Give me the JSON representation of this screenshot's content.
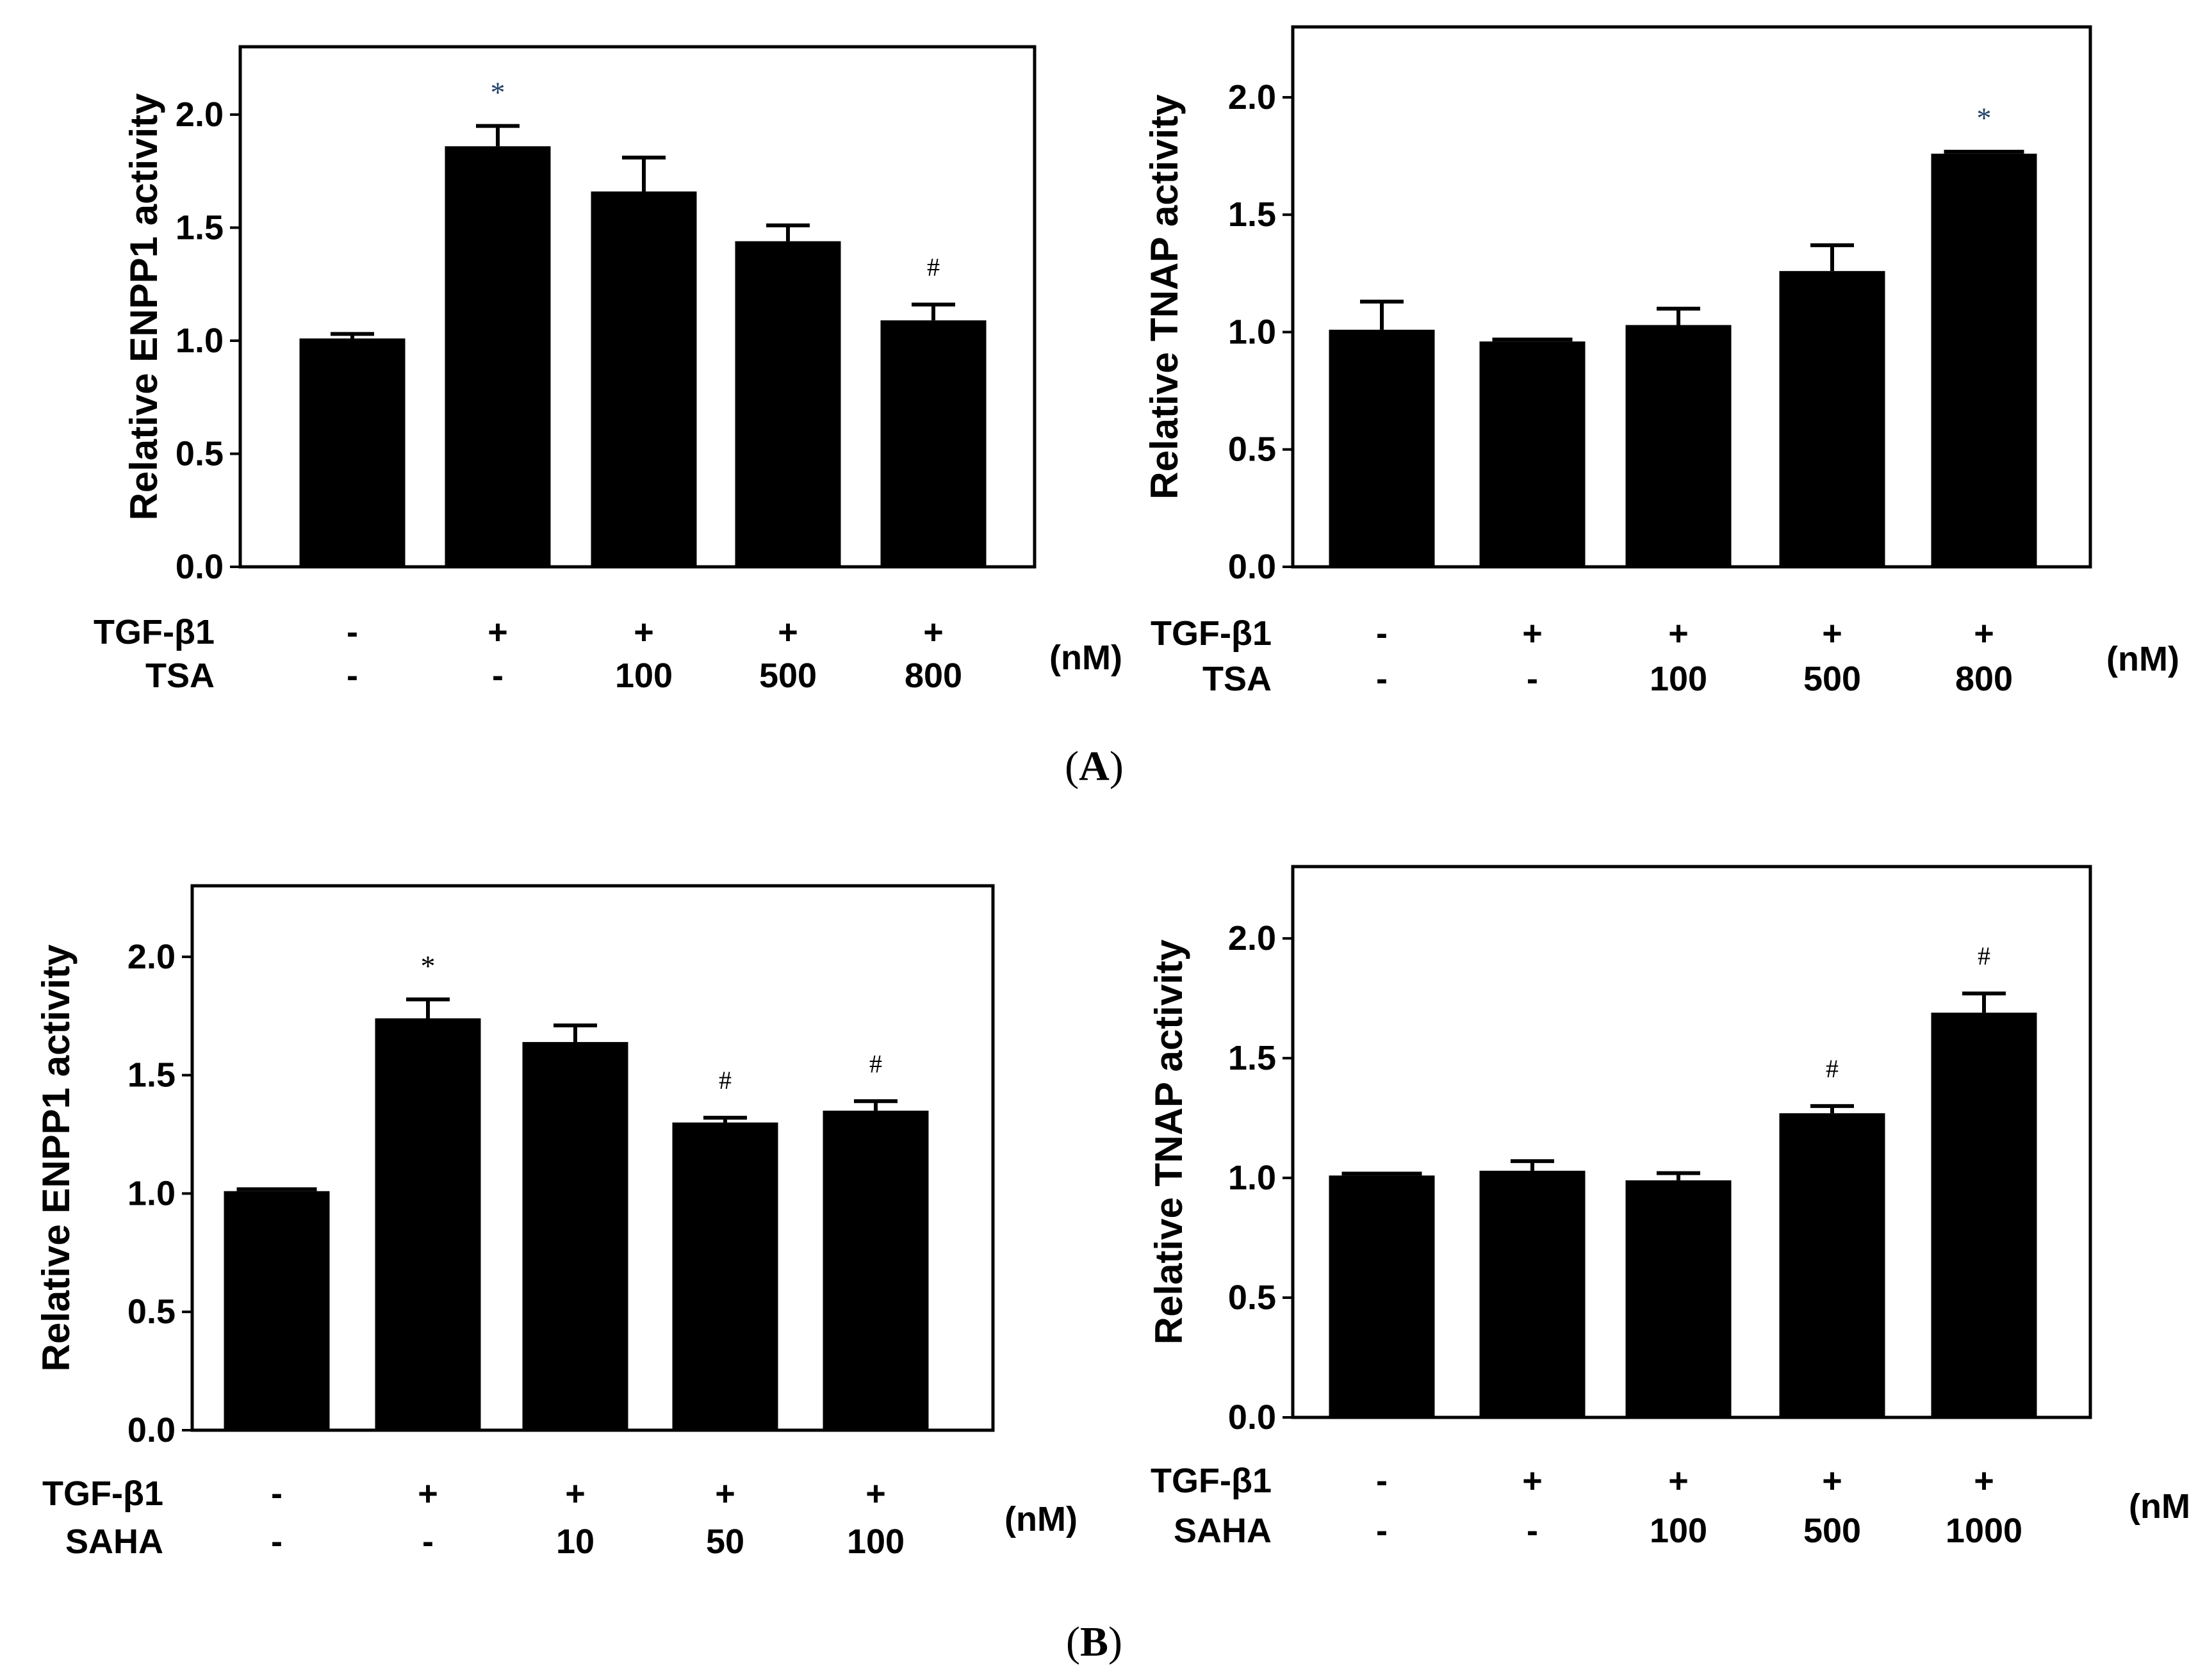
{
  "chart_data": [
    {
      "id": "A-left",
      "type": "bar",
      "ylabel": "Relative ENPP1 activity",
      "ylim": [
        0,
        2.3
      ],
      "yticks": [
        "0.0",
        "0.5",
        "1.0",
        "1.5",
        "2.0"
      ],
      "values": [
        1.01,
        1.86,
        1.66,
        1.44,
        1.09
      ],
      "errors": [
        0.02,
        0.09,
        0.15,
        0.07,
        0.07
      ],
      "annotations": [
        "",
        "*",
        "",
        "",
        "#"
      ],
      "row1_label": "TGF-β1",
      "row1": [
        "-",
        "+",
        "+",
        "+",
        "+"
      ],
      "row2_label": "TSA",
      "row2": [
        "-",
        "-",
        "100",
        "500",
        "800"
      ],
      "unit": "(nM)"
    },
    {
      "id": "A-right",
      "type": "bar",
      "ylabel": "Relative TNAP activity",
      "ylim": [
        0,
        2.3
      ],
      "yticks": [
        "0.0",
        "0.5",
        "1.0",
        "1.5",
        "2.0"
      ],
      "values": [
        1.01,
        0.96,
        1.03,
        1.26,
        1.76
      ],
      "errors": [
        0.12,
        0.01,
        0.07,
        0.11,
        0.01
      ],
      "annotations": [
        "",
        "",
        "",
        "",
        "*"
      ],
      "row1_label": "TGF-β1",
      "row1": [
        "-",
        "+",
        "+",
        "+",
        "+"
      ],
      "row2_label": "TSA",
      "row2": [
        "-",
        "-",
        "100",
        "500",
        "800"
      ],
      "unit": "(nM)"
    },
    {
      "id": "B-left",
      "type": "bar",
      "ylabel": "Relative ENPP1 activity",
      "ylim": [
        0,
        2.3
      ],
      "yticks": [
        "0.0",
        "0.5",
        "1.0",
        "1.5",
        "2.0"
      ],
      "values": [
        1.01,
        1.74,
        1.64,
        1.3,
        1.35
      ],
      "errors": [
        0.01,
        0.08,
        0.07,
        0.02,
        0.04
      ],
      "annotations": [
        "",
        "*",
        "",
        "#",
        "#"
      ],
      "row1_label": "TGF-β1",
      "row1": [
        "-",
        "+",
        "+",
        "+",
        "+"
      ],
      "row2_label": "SAHA",
      "row2": [
        "-",
        "-",
        "10",
        "50",
        "100"
      ],
      "unit": "(nM)"
    },
    {
      "id": "B-right",
      "type": "bar",
      "ylabel": "Relative TNAP activity",
      "ylim": [
        0,
        2.3
      ],
      "yticks": [
        "0.0",
        "0.5",
        "1.0",
        "1.5",
        "2.0"
      ],
      "values": [
        1.01,
        1.03,
        0.99,
        1.27,
        1.69
      ],
      "errors": [
        0.01,
        0.04,
        0.03,
        0.03,
        0.08
      ],
      "annotations": [
        "",
        "",
        "",
        "#",
        "#"
      ],
      "row1_label": "TGF-β1",
      "row1": [
        "-",
        "+",
        "+",
        "+",
        "+"
      ],
      "row2_label": "SAHA",
      "row2": [
        "-",
        "-",
        "100",
        "500",
        "1000"
      ],
      "unit": "(nM)"
    }
  ],
  "panel_labels": [
    "(A)",
    "(B)"
  ],
  "colors": {
    "bar": "#000000",
    "axis": "#000000",
    "background": "#ffffff",
    "star_blue": "#1f3f66"
  }
}
